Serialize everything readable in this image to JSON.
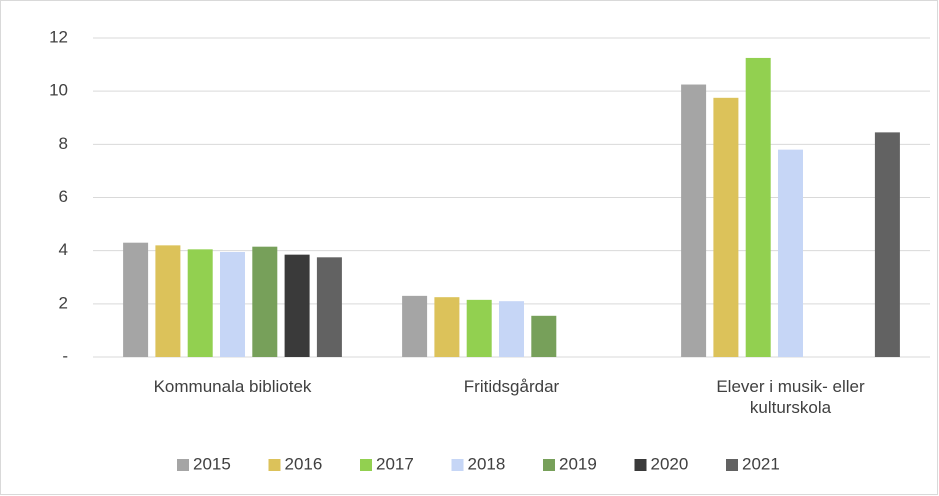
{
  "chart_data": {
    "type": "bar",
    "categories": [
      "Kommunala bibliotek",
      "Fritidsgårdar",
      "Elever i musik- eller kulturskola"
    ],
    "series": [
      {
        "name": "2015",
        "color": "#a5a5a5",
        "values": [
          4.3,
          2.3,
          10.25
        ]
      },
      {
        "name": "2016",
        "color": "#dcc25a",
        "values": [
          4.2,
          2.25,
          9.75
        ]
      },
      {
        "name": "2017",
        "color": "#92d050",
        "values": [
          4.05,
          2.15,
          11.25
        ]
      },
      {
        "name": "2018",
        "color": "#c6d6f6",
        "values": [
          3.95,
          2.1,
          7.8
        ]
      },
      {
        "name": "2019",
        "color": "#77a05a",
        "values": [
          4.15,
          1.55,
          null
        ]
      },
      {
        "name": "2020",
        "color": "#3a3a3a",
        "values": [
          3.85,
          null,
          null
        ]
      },
      {
        "name": "2021",
        "color": "#626262",
        "values": [
          3.75,
          null,
          8.45
        ]
      }
    ],
    "ylim": [
      0,
      12
    ],
    "yticks": [
      {
        "value": 0,
        "label": "-"
      },
      2,
      4,
      6,
      8,
      10,
      12
    ],
    "grid": true,
    "legend": "bottom"
  }
}
